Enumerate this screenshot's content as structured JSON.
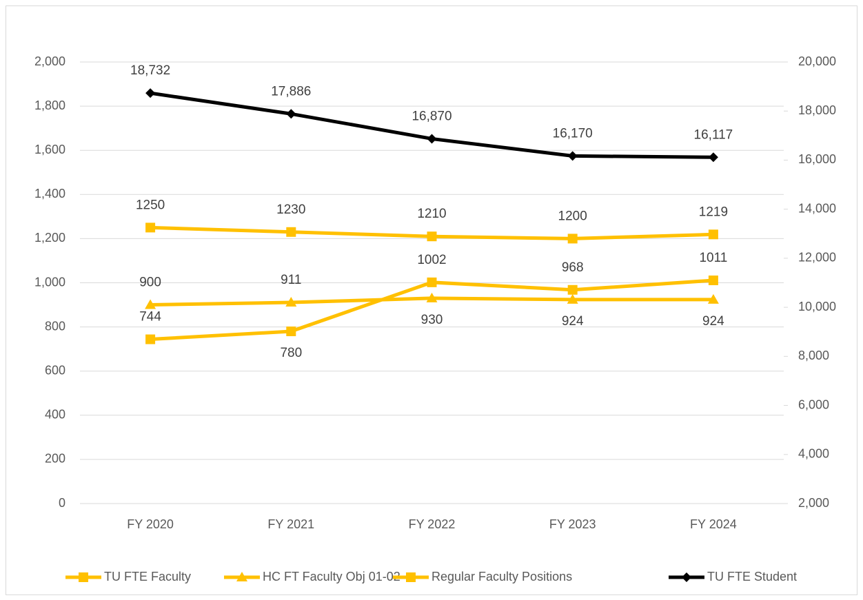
{
  "chart_data": {
    "type": "line",
    "categories": [
      "FY 2020",
      "FY 2021",
      "FY 2022",
      "FY 2023",
      "FY 2024"
    ],
    "series": [
      {
        "name": "TU FTE Faculty",
        "color": "#FFC000",
        "marker": "square",
        "values": [
          744,
          780,
          1002,
          968,
          1011
        ]
      },
      {
        "name": "HC FT Faculty Obj 01-02",
        "color": "#FFC000",
        "marker": "triangle",
        "values": [
          900,
          911,
          930,
          924,
          924
        ]
      },
      {
        "name": "Regular Faculty Positions",
        "color": "#FFC000",
        "marker": "square",
        "values": [
          1250,
          1230,
          1210,
          1200,
          1219
        ]
      },
      {
        "name": "TU FTE Student",
        "color": "#000000",
        "marker": "diamond",
        "axis": "y2",
        "values": [
          18732,
          17886,
          16870,
          16170,
          16117
        ],
        "value_labels": [
          "18,732",
          "17,886",
          "16,870",
          "16,170",
          "16,117"
        ]
      }
    ],
    "ylim": [
      0,
      2000
    ],
    "yticks": [
      0,
      200,
      400,
      600,
      800,
      {
        "value": 1000,
        "label": "1,000"
      },
      {
        "value": 1200,
        "label": "1,200"
      },
      {
        "value": 1400,
        "label": "1,400"
      },
      {
        "value": 1600,
        "label": "1,600"
      },
      {
        "value": 1800,
        "label": "1,800"
      },
      {
        "value": 2000,
        "label": "2,000"
      }
    ],
    "y2lim": [
      2000,
      20000
    ],
    "y2ticks": [
      {
        "value": 2000,
        "label": "2,000"
      },
      {
        "value": 4000,
        "label": "4,000"
      },
      {
        "value": 6000,
        "label": "6,000"
      },
      {
        "value": 8000,
        "label": "8,000"
      },
      {
        "value": 10000,
        "label": "10,000"
      },
      {
        "value": 12000,
        "label": "12,000"
      },
      {
        "value": 14000,
        "label": "14,000"
      },
      {
        "value": 16000,
        "label": "16,000"
      },
      {
        "value": 18000,
        "label": "18,000"
      },
      {
        "value": 20000,
        "label": "20,000"
      }
    ],
    "grid": true,
    "legend": "bottom"
  }
}
